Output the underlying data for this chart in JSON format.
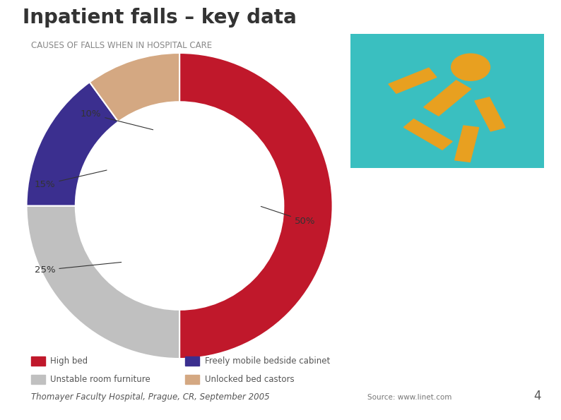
{
  "title": "Inpatient falls – key data",
  "subtitle": "CAUSES OF FALLS WHEN IN HOSPITAL CARE",
  "slices": [
    50,
    25,
    15,
    10
  ],
  "slice_labels": [
    "50%",
    "25%",
    "15%",
    "10%"
  ],
  "slice_colors": [
    "#C0182B",
    "#C0C0C0",
    "#3B2F8F",
    "#D4A882"
  ],
  "slice_names": [
    "High bed",
    "Unstable room furniture",
    "Freely mobile bedside cabinet",
    "Unlocked bed castors"
  ],
  "donut_width": 0.32,
  "start_angle": 90,
  "background_color": "#FFFFFF",
  "title_color": "#333333",
  "subtitle_color": "#888888",
  "legend_color": "#555555",
  "footer_text": "Thomayer Faculty Hospital, Prague, CR, September 2005",
  "source_text": "Source: www.linet.com",
  "page_number": "4",
  "img_bg_color": "#3ABFC0",
  "body_color": "#E8A020"
}
